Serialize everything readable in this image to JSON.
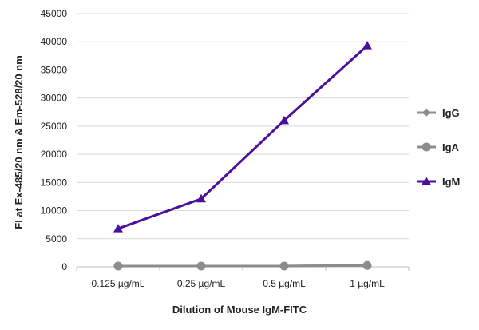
{
  "chart_data": {
    "type": "line",
    "categories": [
      "0.125 µg/mL",
      "0.25 µg/mL",
      "0.5 µg/mL",
      "1 µg/mL"
    ],
    "series": [
      {
        "name": "IgG",
        "values": [
          150,
          150,
          150,
          250
        ],
        "color": "#8c8c8c",
        "marker": "diamond"
      },
      {
        "name": "IgA",
        "values": [
          150,
          150,
          150,
          250
        ],
        "color": "#8c8c8c",
        "marker": "circle"
      },
      {
        "name": "IgM",
        "values": [
          6800,
          12100,
          26000,
          39300
        ],
        "color": "#4b0f9e",
        "marker": "triangle"
      }
    ],
    "ylim": [
      0,
      45000
    ],
    "yticks": [
      0,
      5000,
      10000,
      15000,
      20000,
      25000,
      30000,
      35000,
      40000,
      45000
    ],
    "xlabel": "Dilution of Mouse IgM-FITC",
    "ylabel": "FI at Ex-485/20 nm & Em-528/20 nm",
    "grid": true,
    "legend_position": "right"
  }
}
